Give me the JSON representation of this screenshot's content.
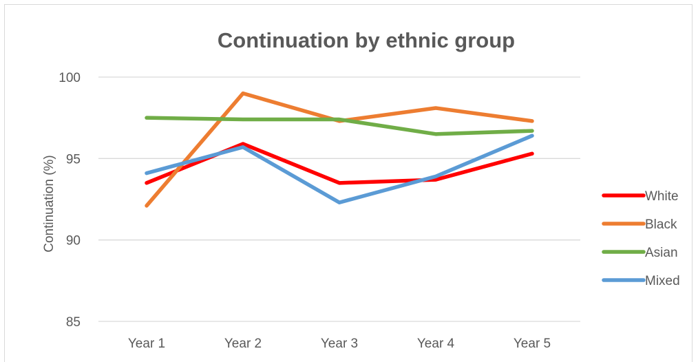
{
  "chart_data": {
    "type": "line",
    "title": "Continuation by ethnic group",
    "xlabel": "",
    "ylabel": "Continuation (%)",
    "categories": [
      "Year 1",
      "Year 2",
      "Year 3",
      "Year 4",
      "Year 5"
    ],
    "ylim": [
      85,
      100
    ],
    "yticks": [
      85,
      90,
      95,
      100
    ],
    "grid": true,
    "legend_position": "right",
    "series": [
      {
        "name": "White",
        "color": "#ff0000",
        "values": [
          93.5,
          95.9,
          93.5,
          93.7,
          95.3
        ]
      },
      {
        "name": "Black",
        "color": "#ed7d31",
        "values": [
          92.1,
          99.0,
          97.3,
          98.1,
          97.3
        ]
      },
      {
        "name": "Asian",
        "color": "#70ad47",
        "values": [
          97.5,
          97.4,
          97.4,
          96.5,
          96.7
        ]
      },
      {
        "name": "Mixed",
        "color": "#5b9bd5",
        "values": [
          94.1,
          95.7,
          92.3,
          93.9,
          96.4
        ]
      }
    ]
  }
}
